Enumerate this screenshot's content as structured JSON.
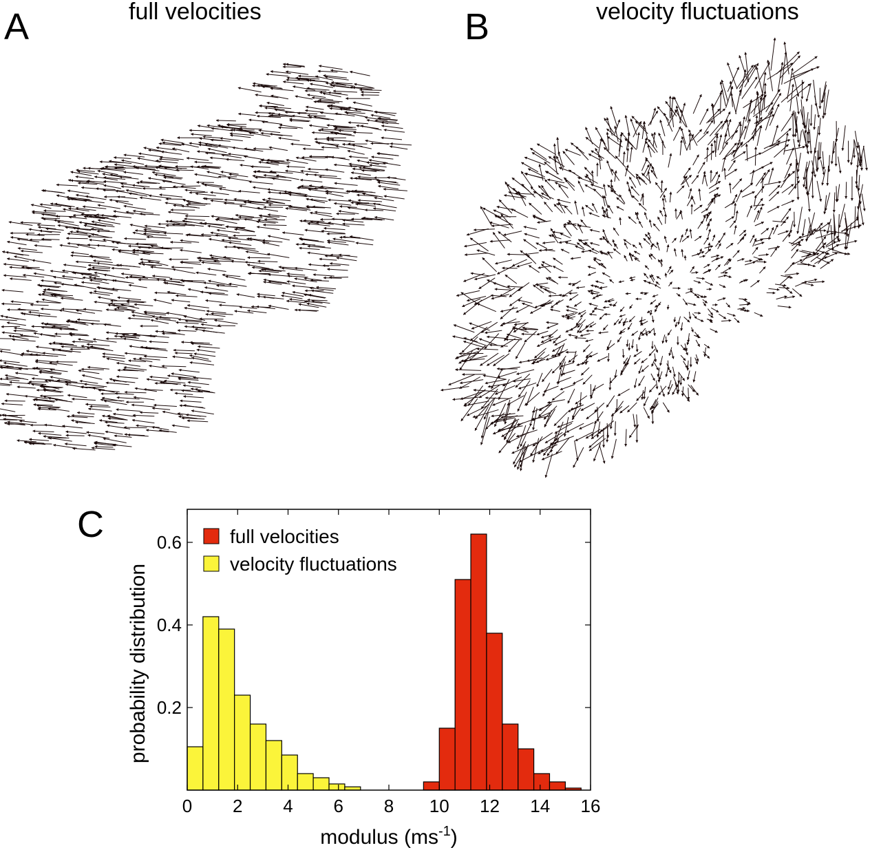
{
  "panels": {
    "a": {
      "letter": "A",
      "title": "full velocities"
    },
    "b": {
      "letter": "B",
      "title": "velocity fluctuations"
    },
    "c": {
      "letter": "C"
    }
  },
  "colors": {
    "full": "#e32b0e",
    "fluct": "#fbf43a",
    "arrow": "#1a0a0a",
    "axis": "#000000"
  },
  "chart_data": [
    {
      "panel": "A",
      "type": "quiver",
      "title": "full velocities",
      "dominant_direction": "up-left",
      "arrow_count_estimate": 1200
    },
    {
      "panel": "B",
      "type": "quiver",
      "title": "velocity fluctuations",
      "dominant_direction": "mixed",
      "arrow_count_estimate": 1200
    },
    {
      "panel": "C",
      "type": "bar",
      "xlabel": "modulus (ms",
      "xlabel_sup": "-1",
      "xlabel_end": ")",
      "ylabel": "probability distribution",
      "xlim": [
        0,
        16
      ],
      "ylim": [
        0,
        0.68
      ],
      "xticks": [
        "0",
        "2",
        "4",
        "6",
        "8",
        "10",
        "12",
        "14",
        "16"
      ],
      "xtick_values": [
        0,
        2,
        4,
        6,
        8,
        10,
        12,
        14,
        16
      ],
      "yticks": [
        "0.2",
        "0.4",
        "0.6"
      ],
      "ytick_values": [
        0.2,
        0.4,
        0.6
      ],
      "bin_width": 0.625,
      "legend_position": "top-left",
      "series": [
        {
          "name": "full velocities",
          "color": "#e32b0e",
          "bins": [
            [
              9.375,
              0.02
            ],
            [
              10.0,
              0.15
            ],
            [
              10.625,
              0.51
            ],
            [
              11.25,
              0.62
            ],
            [
              11.875,
              0.38
            ],
            [
              12.5,
              0.16
            ],
            [
              13.125,
              0.1
            ],
            [
              13.75,
              0.04
            ],
            [
              14.375,
              0.02
            ],
            [
              15.0,
              0.005
            ]
          ]
        },
        {
          "name": "velocity fluctuations",
          "color": "#fbf43a",
          "bins": [
            [
              0.0,
              0.105
            ],
            [
              0.625,
              0.42
            ],
            [
              1.25,
              0.39
            ],
            [
              1.875,
              0.23
            ],
            [
              2.5,
              0.16
            ],
            [
              3.125,
              0.12
            ],
            [
              3.75,
              0.085
            ],
            [
              4.375,
              0.04
            ],
            [
              5.0,
              0.03
            ],
            [
              5.625,
              0.015
            ],
            [
              6.25,
              0.008
            ]
          ]
        }
      ]
    }
  ]
}
